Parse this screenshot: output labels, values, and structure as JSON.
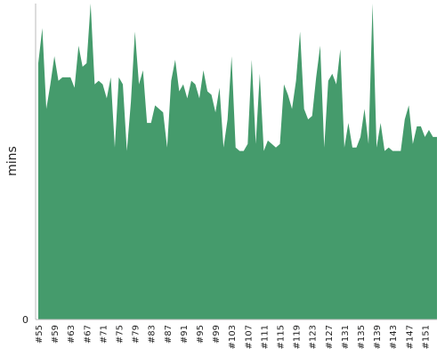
{
  "chart_data": {
    "type": "area",
    "ylabel": "mins",
    "xlabel": "",
    "title": "",
    "ylim": [
      0,
      45
    ],
    "y_ticks": [
      0
    ],
    "x_start": 55,
    "x_end": 154,
    "x_tick_labels": [
      "#55",
      "#59",
      "#63",
      "#67",
      "#71",
      "#75",
      "#79",
      "#83",
      "#87",
      "#91",
      "#95",
      "#99",
      "#103",
      "#107",
      "#111",
      "#115",
      "#119",
      "#123",
      "#127",
      "#131",
      "#135",
      "#139",
      "#143",
      "#147",
      "#151"
    ],
    "color": "#459b6c",
    "values": [
      36.5,
      41.5,
      30,
      33.5,
      37.5,
      34,
      34.5,
      34.5,
      34.5,
      33,
      39,
      36,
      36.5,
      45,
      33.5,
      34,
      33.5,
      31.5,
      34.5,
      24.5,
      34.5,
      33.5,
      24,
      31,
      41,
      33.5,
      35.5,
      28,
      28,
      30.5,
      30,
      29.5,
      24.5,
      34,
      37,
      32.5,
      33.5,
      31.5,
      34,
      33.5,
      31.5,
      35.5,
      32.5,
      32,
      29.5,
      33,
      24.5,
      28.5,
      37.5,
      24.5,
      24,
      24,
      25,
      37,
      25,
      35,
      24,
      25.5,
      25,
      24.5,
      25,
      33.5,
      32,
      30,
      34,
      41,
      30,
      28.5,
      29,
      34.5,
      39,
      24.5,
      34,
      35,
      33.5,
      38.5,
      24.5,
      28,
      24.5,
      24.5,
      26,
      30,
      25,
      45,
      24.5,
      28,
      24,
      24.5,
      24,
      24,
      24,
      28.5,
      30.5,
      25,
      27.5,
      27.5,
      26,
      27,
      26,
      26
    ]
  }
}
